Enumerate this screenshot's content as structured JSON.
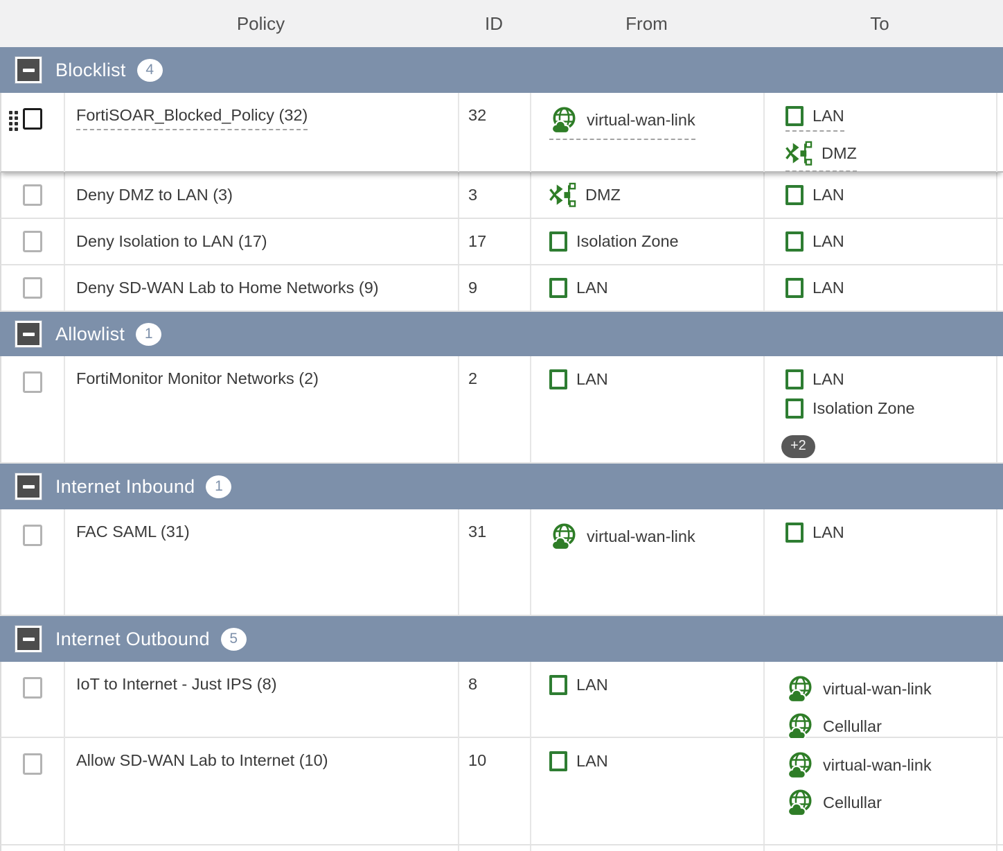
{
  "colors": {
    "group_header_bg": "#7d90aa",
    "interface_green": "#2e7d32",
    "sdwan_green": "#2e7d27",
    "more_badge_bg": "#585858",
    "header_bg": "#f1f1f2"
  },
  "columns": [
    {
      "label": "Policy"
    },
    {
      "label": "ID"
    },
    {
      "label": "From"
    },
    {
      "label": "To"
    }
  ],
  "groups": [
    {
      "name": "Blocklist",
      "count": "4",
      "rows": [
        {
          "policy": "FortiSOAR_Blocked_Policy (32)",
          "id": "32",
          "selected": true,
          "from": [
            {
              "label": "virtual-wan-link",
              "icon": "sdwan-globe"
            }
          ],
          "to": [
            {
              "label": "LAN",
              "icon": "interface-square"
            },
            {
              "label": "DMZ",
              "icon": "zone"
            }
          ]
        },
        {
          "policy": "Deny DMZ to LAN (3)",
          "id": "3",
          "from": [
            {
              "label": "DMZ",
              "icon": "zone"
            }
          ],
          "to": [
            {
              "label": "LAN",
              "icon": "interface-square"
            }
          ]
        },
        {
          "policy": "Deny Isolation to LAN (17)",
          "id": "17",
          "from": [
            {
              "label": "Isolation Zone",
              "icon": "interface-square"
            }
          ],
          "to": [
            {
              "label": "LAN",
              "icon": "interface-square"
            }
          ]
        },
        {
          "policy": "Deny SD-WAN Lab to Home Networks (9)",
          "id": "9",
          "from": [
            {
              "label": "LAN",
              "icon": "interface-square"
            }
          ],
          "to": [
            {
              "label": "LAN",
              "icon": "interface-square"
            }
          ]
        }
      ]
    },
    {
      "name": "Allowlist",
      "count": "1",
      "rows": [
        {
          "policy": "FortiMonitor Monitor Networks (2)",
          "id": "2",
          "from": [
            {
              "label": "LAN",
              "icon": "interface-square"
            }
          ],
          "to": [
            {
              "label": "LAN",
              "icon": "interface-square"
            },
            {
              "label": "Isolation Zone",
              "icon": "interface-square"
            }
          ],
          "to_more": "+2"
        }
      ]
    },
    {
      "name": "Internet Inbound",
      "count": "1",
      "rows": [
        {
          "policy": "FAC SAML (31)",
          "id": "31",
          "from": [
            {
              "label": "virtual-wan-link",
              "icon": "sdwan-globe"
            }
          ],
          "to": [
            {
              "label": "LAN",
              "icon": "interface-square"
            }
          ]
        }
      ]
    },
    {
      "name": "Internet Outbound",
      "count": "5",
      "rows": [
        {
          "policy": "IoT to Internet - Just IPS (8)",
          "id": "8",
          "from": [
            {
              "label": "LAN",
              "icon": "interface-square"
            }
          ],
          "to": [
            {
              "label": "virtual-wan-link",
              "icon": "sdwan-globe"
            },
            {
              "label": "Cellullar",
              "icon": "sdwan-globe"
            }
          ]
        },
        {
          "policy": "Allow SD-WAN Lab to Internet (10)",
          "id": "10",
          "from": [
            {
              "label": "LAN",
              "icon": "interface-square"
            }
          ],
          "to": [
            {
              "label": "virtual-wan-link",
              "icon": "sdwan-globe"
            },
            {
              "label": "Cellullar",
              "icon": "sdwan-globe"
            }
          ]
        }
      ]
    }
  ]
}
